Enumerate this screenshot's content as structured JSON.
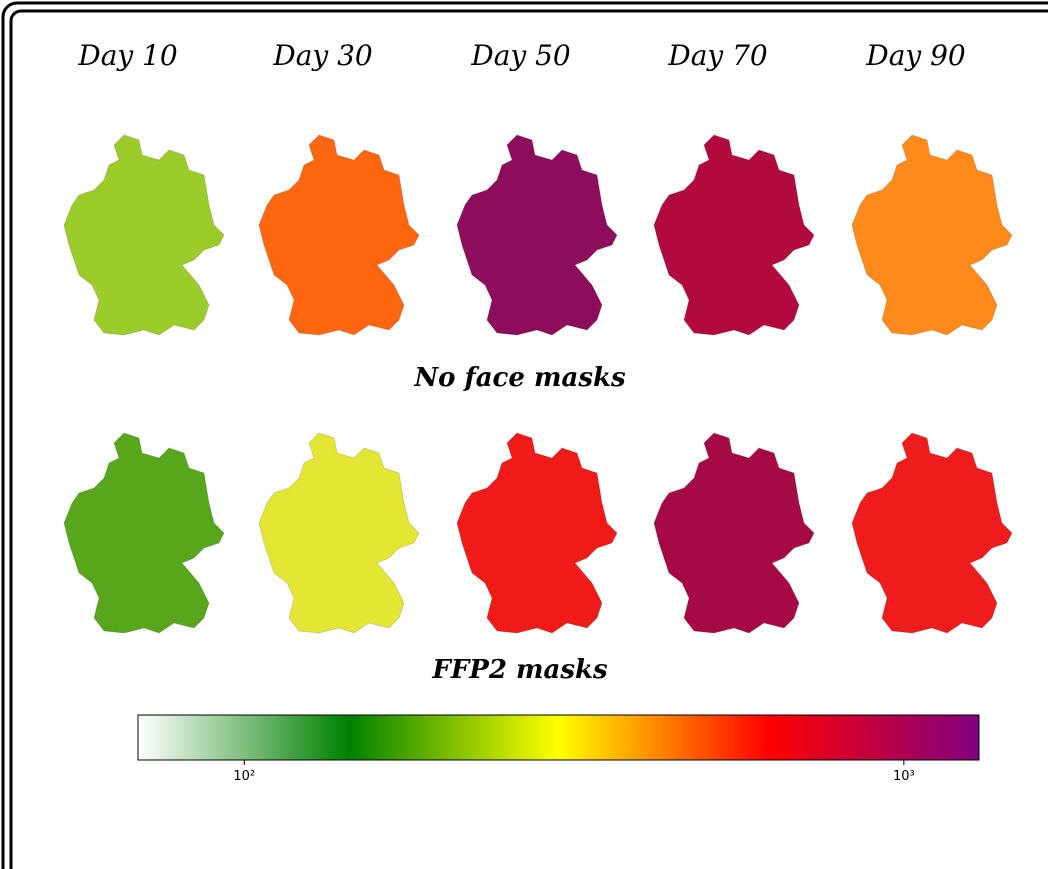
{
  "columns": [
    "Day 10",
    "Day 30",
    "Day 50",
    "Day 70",
    "Day 90"
  ],
  "rows": [
    {
      "label": "No face masks",
      "fills": [
        "#9ccc2a",
        "#ff6610",
        "#8e0c5c",
        "#b2093e",
        "#ff8a1c"
      ]
    },
    {
      "label": "FFP2 masks",
      "fills": [
        "#58a61c",
        "#e4e634",
        "#f01a18",
        "#a60a46",
        "#ee1c1c"
      ]
    }
  ],
  "colorbar": {
    "scale": "log",
    "lim": [
      69,
      1300
    ],
    "ticks": [
      {
        "value": 100,
        "label": "10²"
      },
      {
        "value": 1000,
        "label": "10³"
      }
    ],
    "colors": [
      "#ffffff",
      "#008000",
      "#ffff00",
      "#ff0000",
      "#800080"
    ]
  }
}
